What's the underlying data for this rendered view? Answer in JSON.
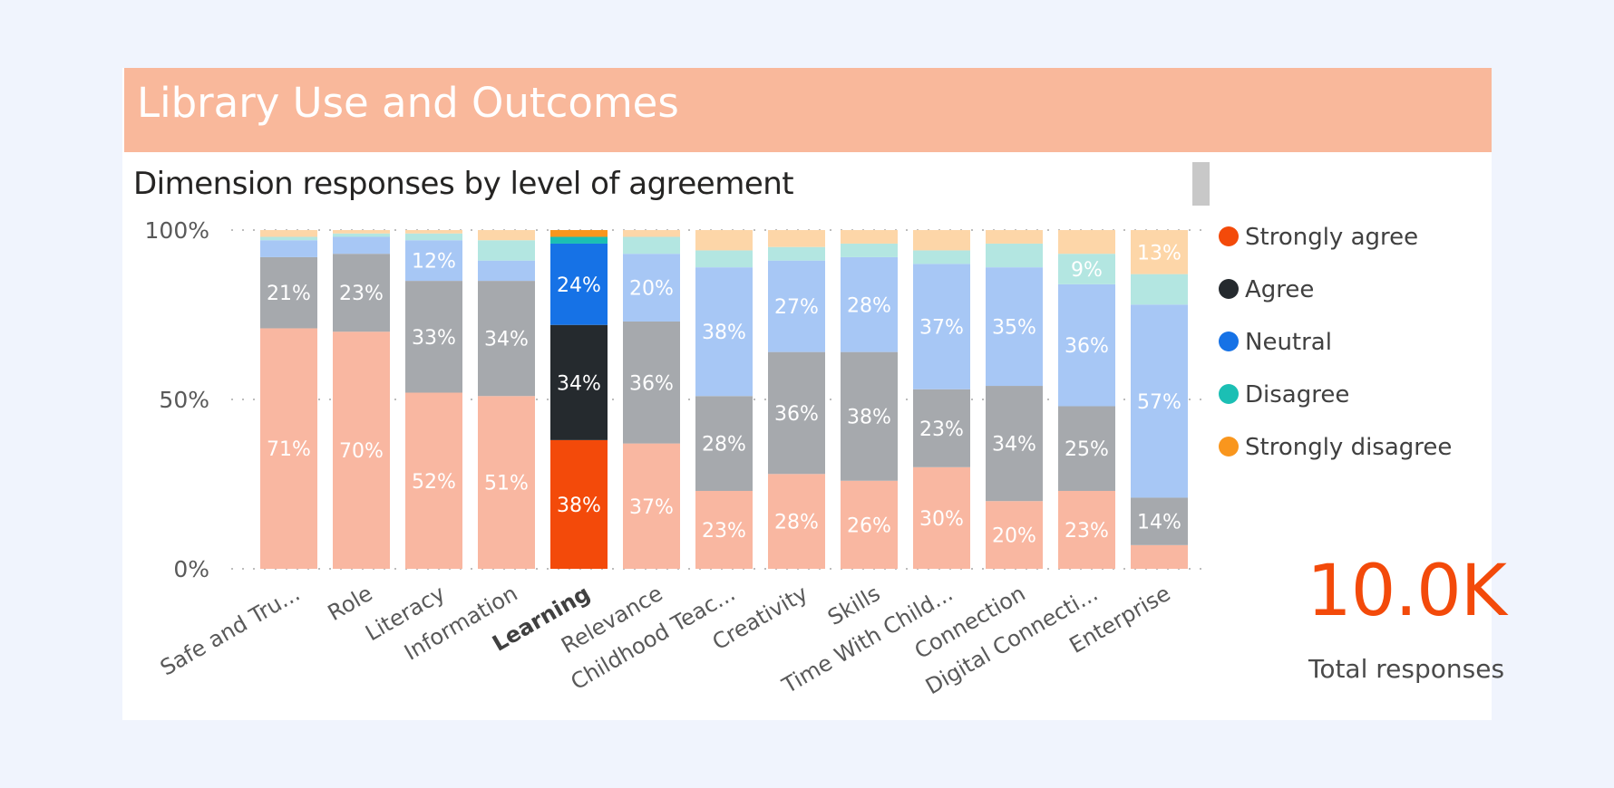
{
  "banner": {
    "title": "Library Use and Outcomes"
  },
  "kpi": {
    "value": "10.0K",
    "label": "Total responses"
  },
  "colors": {
    "strongly_agree": "#f34a0a",
    "agree": "#252a2e",
    "neutral": "#1672e6",
    "disagree": "#1bbfb4",
    "strongly_disagree": "#f9961d",
    "dim_strongly_agree": "#f9b7a1",
    "dim_agree": "#a6a9ad",
    "dim_neutral": "#a7c7f5",
    "dim_disagree": "#b3e6e1",
    "dim_strongly_disagree": "#fdd6a8",
    "banner": "#f9b89b"
  },
  "chart_data": {
    "type": "bar",
    "stacked": true,
    "title": "Dimension responses by level of agreement",
    "highlighted_category": "Learning",
    "categories": [
      "Safe and Tru...",
      "Role",
      "Literacy",
      "Information",
      "Learning",
      "Relevance",
      "Childhood Teac...",
      "Creativity",
      "Skills",
      "Time With Child...",
      "Connection",
      "Digital Connecti...",
      "Enterprise"
    ],
    "y_ticks": [
      "0%",
      "50%",
      "100%"
    ],
    "ylim": [
      0,
      100
    ],
    "legend_position": "right",
    "series": [
      {
        "name": "Strongly agree",
        "values": [
          71,
          70,
          52,
          51,
          38,
          37,
          23,
          28,
          26,
          30,
          20,
          23,
          7
        ]
      },
      {
        "name": "Agree",
        "values": [
          21,
          23,
          33,
          34,
          34,
          36,
          28,
          36,
          38,
          23,
          34,
          25,
          14
        ]
      },
      {
        "name": "Neutral",
        "values": [
          5,
          5,
          12,
          6,
          24,
          20,
          38,
          27,
          28,
          37,
          35,
          36,
          57
        ]
      },
      {
        "name": "Disagree",
        "values": [
          1,
          1,
          2,
          6,
          2,
          5,
          5,
          4,
          4,
          4,
          7,
          9,
          9
        ]
      },
      {
        "name": "Strongly disagree",
        "values": [
          2,
          1,
          1,
          3,
          2,
          2,
          6,
          5,
          4,
          6,
          4,
          7,
          13
        ]
      }
    ],
    "data_labels": [
      [
        "71%",
        "21%",
        "",
        "",
        ""
      ],
      [
        "70%",
        "23%",
        "",
        "",
        ""
      ],
      [
        "52%",
        "33%",
        "12%",
        "",
        ""
      ],
      [
        "51%",
        "34%",
        "",
        "",
        ""
      ],
      [
        "38%",
        "34%",
        "24%",
        "",
        ""
      ],
      [
        "37%",
        "36%",
        "20%",
        "",
        ""
      ],
      [
        "23%",
        "28%",
        "38%",
        "",
        ""
      ],
      [
        "28%",
        "36%",
        "27%",
        "",
        ""
      ],
      [
        "26%",
        "38%",
        "28%",
        "",
        ""
      ],
      [
        "30%",
        "23%",
        "37%",
        "",
        ""
      ],
      [
        "20%",
        "34%",
        "35%",
        "",
        ""
      ],
      [
        "23%",
        "25%",
        "36%",
        "9%",
        ""
      ],
      [
        "",
        "14%",
        "57%",
        "",
        "13%"
      ]
    ]
  }
}
